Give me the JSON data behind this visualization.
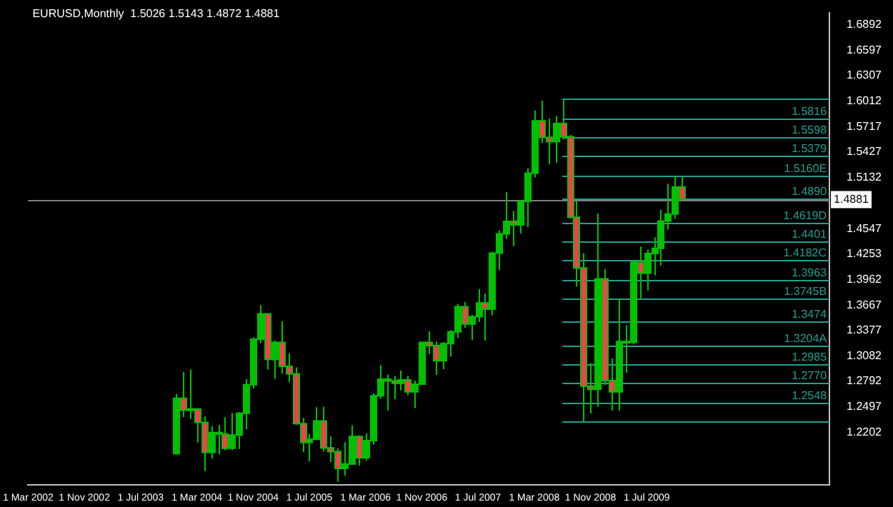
{
  "chart_data": {
    "type": "candlestick",
    "title": "EURUSD,Monthly  1.5026 1.5143 1.4872 1.4881",
    "colors": [
      "#00c000",
      "#ff3c50",
      "#00c000",
      "#ff3c50",
      "#ff3c50",
      "#00c000",
      "#ff3c50",
      "#ff3c50",
      "#00c000",
      "#00c000",
      "#00c000",
      "#00c000",
      "#00c000",
      "#ff3c50",
      "#00c000",
      "#ff3c50",
      "#ff3c50",
      "#ff3c50",
      "#ff3c50",
      "#00c000",
      "#00c000",
      "#ff3c50",
      "#ff3c50",
      "#ff3c50",
      "#00c000",
      "#00c000",
      "#ff3c50",
      "#00c000",
      "#00c000",
      "#00c000",
      "#ff3c50",
      "#ff3c50",
      "#00c000",
      "#ff3c50",
      "#00c000",
      "#00c000",
      "#ff3c50",
      "#ff3c50",
      "#00c000",
      "#00c000",
      "#00c000",
      "#ff3c50",
      "#00c000",
      "#00c000",
      "#ff3c50",
      "#00c000",
      "#00c000",
      "#00c000",
      "#ff3c50",
      "#00c000",
      "#00c000",
      "#00c000",
      "#ff3c50",
      "#ff3c50",
      "#00c000",
      "#ff3c50",
      "#ff3c50",
      "#ff3c50",
      "#ff3c50",
      "#ff3c50",
      "#00c000",
      "#ff3c50",
      "#ff3c50",
      "#00c000",
      "#ff3c50",
      "#00c000",
      "#ff3c50",
      "#00c000",
      "#00c000",
      "#00c000",
      "#00c000",
      "#00c000",
      "#ff3c50"
    ],
    "x": [
      "2003-12",
      "2004-01",
      "2004-02",
      "2004-03",
      "2004-04",
      "2004-05",
      "2004-06",
      "2004-07",
      "2004-08",
      "2004-09",
      "2004-10",
      "2004-11",
      "2004-12",
      "2005-01",
      "2005-02",
      "2005-03",
      "2005-04",
      "2005-05",
      "2005-06",
      "2005-07",
      "2005-08",
      "2005-09",
      "2005-10",
      "2005-11",
      "2005-12",
      "2006-01",
      "2006-02",
      "2006-03",
      "2006-04",
      "2006-05",
      "2006-06",
      "2006-07",
      "2006-08",
      "2006-09",
      "2006-10",
      "2006-11",
      "2006-12",
      "2007-01",
      "2007-02",
      "2007-03",
      "2007-04",
      "2007-05",
      "2007-06",
      "2007-07",
      "2007-08",
      "2007-09",
      "2007-10",
      "2007-11",
      "2007-12",
      "2008-01",
      "2008-02",
      "2008-03",
      "2008-04",
      "2008-05",
      "2008-06",
      "2008-07",
      "2008-08",
      "2008-09",
      "2008-10",
      "2008-11",
      "2008-12",
      "2009-01",
      "2009-02",
      "2009-03",
      "2009-04",
      "2009-05",
      "2009-06",
      "2009-07",
      "2009-08",
      "2009-09",
      "2009-10",
      "2009-11",
      "2009-12"
    ],
    "ohlc": [
      [
        1.196,
        1.2647,
        1.195,
        1.2597
      ],
      [
        1.2597,
        1.2899,
        1.2381,
        1.2462
      ],
      [
        1.2462,
        1.2929,
        1.2358,
        1.2474
      ],
      [
        1.2474,
        1.2474,
        1.2088,
        1.232
      ],
      [
        1.232,
        1.239,
        1.1759,
        1.1975
      ],
      [
        1.1975,
        1.2275,
        1.1905,
        1.2202
      ],
      [
        1.2202,
        1.2289,
        1.1953,
        1.2185
      ],
      [
        1.2185,
        1.238,
        1.2,
        1.2022
      ],
      [
        1.2022,
        1.2429,
        1.2,
        1.2175
      ],
      [
        1.2175,
        1.2436,
        1.2014,
        1.2425
      ],
      [
        1.2425,
        1.2818,
        1.224,
        1.2753
      ],
      [
        1.2753,
        1.3296,
        1.271,
        1.3275
      ],
      [
        1.3275,
        1.3666,
        1.323,
        1.3567
      ],
      [
        1.3567,
        1.357,
        1.2928,
        1.3044
      ],
      [
        1.3044,
        1.3259,
        1.2819,
        1.324
      ],
      [
        1.324,
        1.3482,
        1.2879,
        1.2965
      ],
      [
        1.2965,
        1.3114,
        1.2781,
        1.2878
      ],
      [
        1.2878,
        1.2952,
        1.2294,
        1.2305
      ],
      [
        1.2305,
        1.2371,
        1.1978,
        1.209
      ],
      [
        1.209,
        1.2186,
        1.187,
        1.2125
      ],
      [
        1.2125,
        1.2494,
        1.2125,
        1.2337
      ],
      [
        1.2337,
        1.25,
        1.1986,
        1.2026
      ],
      [
        1.2026,
        1.2161,
        1.1865,
        1.1983
      ],
      [
        1.1983,
        1.202,
        1.1639,
        1.179
      ],
      [
        1.179,
        1.2092,
        1.1706,
        1.1841
      ],
      [
        1.1841,
        1.2287,
        1.1829,
        1.2158
      ],
      [
        1.2158,
        1.217,
        1.1826,
        1.1914
      ],
      [
        1.1914,
        1.2192,
        1.188,
        1.211
      ],
      [
        1.211,
        1.2654,
        1.2064,
        1.2625
      ],
      [
        1.2625,
        1.2979,
        1.259,
        1.2817
      ],
      [
        1.2817,
        1.2869,
        1.2456,
        1.2795
      ],
      [
        1.2795,
        1.2853,
        1.2586,
        1.2769
      ],
      [
        1.2769,
        1.2914,
        1.2688,
        1.2808
      ],
      [
        1.2808,
        1.2856,
        1.2634,
        1.2671
      ],
      [
        1.2671,
        1.28,
        1.2483,
        1.2758
      ],
      [
        1.2758,
        1.3247,
        1.2755,
        1.324
      ],
      [
        1.324,
        1.3367,
        1.3106,
        1.3202
      ],
      [
        1.3202,
        1.325,
        1.2866,
        1.3027
      ],
      [
        1.3027,
        1.3243,
        1.2931,
        1.3225
      ],
      [
        1.3225,
        1.338,
        1.3075,
        1.336
      ],
      [
        1.336,
        1.3682,
        1.329,
        1.365
      ],
      [
        1.365,
        1.3705,
        1.3405,
        1.345
      ],
      [
        1.345,
        1.3555,
        1.3265,
        1.3535
      ],
      [
        1.3535,
        1.3852,
        1.3475,
        1.3693
      ],
      [
        1.3693,
        1.38,
        1.326,
        1.362
      ],
      [
        1.362,
        1.4279,
        1.355,
        1.4265
      ],
      [
        1.4265,
        1.4527,
        1.4071,
        1.4487
      ],
      [
        1.4487,
        1.4966,
        1.443,
        1.463
      ],
      [
        1.463,
        1.475,
        1.4344,
        1.459
      ],
      [
        1.459,
        1.4874,
        1.4488,
        1.486
      ],
      [
        1.486,
        1.524,
        1.4565,
        1.5185
      ],
      [
        1.5185,
        1.5904,
        1.5134,
        1.5785
      ],
      [
        1.5785,
        1.6018,
        1.5529,
        1.5595
      ],
      [
        1.5595,
        1.5812,
        1.5285,
        1.5547
      ],
      [
        1.5547,
        1.5843,
        1.5303,
        1.5754
      ],
      [
        1.5754,
        1.6038,
        1.5571,
        1.5603
      ],
      [
        1.5603,
        1.5624,
        1.466,
        1.4678
      ],
      [
        1.4678,
        1.4867,
        1.3881,
        1.4095
      ],
      [
        1.4095,
        1.4267,
        1.233,
        1.2737
      ],
      [
        1.2737,
        1.3,
        1.2423,
        1.27
      ],
      [
        1.27,
        1.472,
        1.25,
        1.397
      ],
      [
        1.397,
        1.408,
        1.275,
        1.28
      ],
      [
        1.28,
        1.3055,
        1.2456,
        1.267
      ],
      [
        1.267,
        1.3738,
        1.2455,
        1.325
      ],
      [
        1.325,
        1.3433,
        1.289,
        1.324
      ],
      [
        1.324,
        1.4165,
        1.3215,
        1.416
      ],
      [
        1.416,
        1.434,
        1.3745,
        1.4035
      ],
      [
        1.4035,
        1.4305,
        1.3836,
        1.426
      ],
      [
        1.426,
        1.4447,
        1.4011,
        1.432
      ],
      [
        1.432,
        1.4764,
        1.4124,
        1.4635
      ],
      [
        1.4635,
        1.5063,
        1.4536,
        1.4715
      ],
      [
        1.4715,
        1.5145,
        1.466,
        1.5025
      ],
      [
        1.5026,
        1.5143,
        1.4872,
        1.4881
      ]
    ],
    "xlim": [
      "2002-03",
      "2011-09"
    ],
    "xticks": [
      {
        "value": "2002-03",
        "label": "1 Mar 2002"
      },
      {
        "value": "2002-11",
        "label": "1 Nov 2002"
      },
      {
        "value": "2003-07",
        "label": "1 Jul 2003"
      },
      {
        "value": "2004-03",
        "label": "1 Mar 2004"
      },
      {
        "value": "2004-11",
        "label": "1 Nov 2004"
      },
      {
        "value": "2005-07",
        "label": "1 Jul 2005"
      },
      {
        "value": "2006-03",
        "label": "1 Mar 2006"
      },
      {
        "value": "2006-11",
        "label": "1 Nov 2006"
      },
      {
        "value": "2007-07",
        "label": "1 Jul 2007"
      },
      {
        "value": "2008-03",
        "label": "1 Mar 2008"
      },
      {
        "value": "2008-11",
        "label": "1 Nov 2008"
      },
      {
        "value": "2009-07",
        "label": "1 Jul 2009"
      }
    ],
    "ylim": [
      1.16,
      1.703
    ],
    "yticks": [
      1.2202,
      1.2497,
      1.2792,
      1.3082,
      1.3377,
      1.3667,
      1.3962,
      1.4253,
      1.4547,
      1.5132,
      1.5427,
      1.5717,
      1.6012,
      1.6307,
      1.6597,
      1.6892
    ],
    "ref_lines": [
      {
        "axis": "y",
        "value": 1.6038,
        "label": null,
        "color": "#20a090"
      },
      {
        "axis": "y",
        "value": 1.5816,
        "label": "1.5816",
        "color": "#20a090"
      },
      {
        "axis": "y",
        "value": 1.5598,
        "label": "1.5598",
        "color": "#20a090"
      },
      {
        "axis": "y",
        "value": 1.5379,
        "label": "1.5379",
        "color": "#20a090"
      },
      {
        "axis": "y",
        "value": 1.516,
        "label": "1.5160E",
        "color": "#20a090"
      },
      {
        "axis": "y",
        "value": 1.489,
        "label": "1.4890",
        "color": "#20a090"
      },
      {
        "axis": "y",
        "value": 1.4619,
        "label": "1.4619D",
        "color": "#20a090"
      },
      {
        "axis": "y",
        "value": 1.4401,
        "label": "1.4401",
        "color": "#20a090"
      },
      {
        "axis": "y",
        "value": 1.4182,
        "label": "1.4182C",
        "color": "#20a090"
      },
      {
        "axis": "y",
        "value": 1.3963,
        "label": "1.3963",
        "color": "#20a090"
      },
      {
        "axis": "y",
        "value": 1.3745,
        "label": "1.3745B",
        "color": "#20a090"
      },
      {
        "axis": "y",
        "value": 1.3474,
        "label": "1.3474",
        "color": "#20a090"
      },
      {
        "axis": "y",
        "value": 1.3204,
        "label": "1.3204A",
        "color": "#20a090"
      },
      {
        "axis": "y",
        "value": 1.2985,
        "label": "1.2985",
        "color": "#20a090"
      },
      {
        "axis": "y",
        "value": 1.277,
        "label": "1.2770",
        "color": "#20a090"
      },
      {
        "axis": "y",
        "value": 1.2548,
        "label": "1.2548",
        "color": "#20a090"
      },
      {
        "axis": "y",
        "value": 1.233,
        "label": null,
        "color": "#20a090"
      },
      {
        "axis": "y",
        "value": 1.4881,
        "label": "1.4881",
        "color": "#808080"
      }
    ],
    "grid": false,
    "legend": false
  }
}
